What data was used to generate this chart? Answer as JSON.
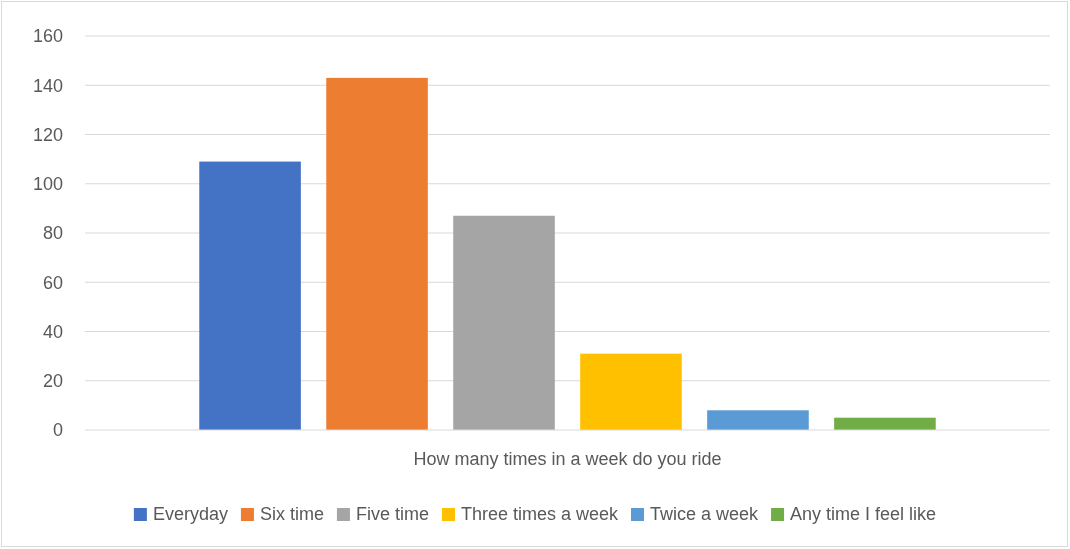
{
  "chart_data": {
    "type": "bar",
    "categories": [
      "How many times in a week do you ride"
    ],
    "series": [
      {
        "name": "Everyday",
        "color": "#4472c4",
        "values": [
          109
        ]
      },
      {
        "name": "Six time",
        "color": "#ed7d31",
        "values": [
          143
        ]
      },
      {
        "name": "Five time",
        "color": "#a5a5a5",
        "values": [
          87
        ]
      },
      {
        "name": "Three times a week",
        "color": "#ffc000",
        "values": [
          31
        ]
      },
      {
        "name": "Twice a week",
        "color": "#5b9bd5",
        "values": [
          8
        ]
      },
      {
        "name": "Any time I feel like",
        "color": "#70ad47",
        "values": [
          5
        ]
      }
    ],
    "ylim": [
      0,
      160
    ],
    "yticks": [
      0,
      20,
      40,
      60,
      80,
      100,
      120,
      140,
      160
    ],
    "grid": "y",
    "legend": "bottom"
  }
}
